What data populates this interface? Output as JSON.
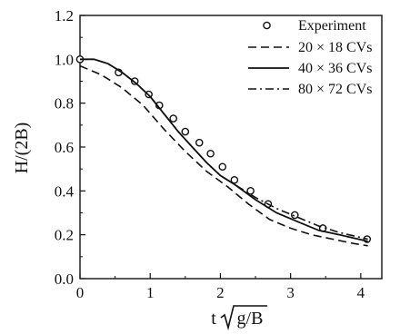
{
  "chart_data": {
    "type": "line",
    "xlabel": "t",
    "xlabel_sqrt": "g/B",
    "ylabel": "H/(2B)",
    "xlim": [
      0,
      4.3
    ],
    "ylim": [
      0,
      1.2
    ],
    "x_ticks": [
      0,
      1,
      2,
      3,
      4
    ],
    "y_ticks": [
      0.0,
      0.2,
      0.4,
      0.6,
      0.8,
      1.0,
      1.2
    ],
    "x_tick_labels": [
      "0",
      "1",
      "2",
      "3",
      "4"
    ],
    "y_tick_labels": [
      "0.0",
      "0.2",
      "0.4",
      "0.6",
      "0.8",
      "1.0",
      "1.2"
    ],
    "grid": false,
    "legend_position": "top-right",
    "series": [
      {
        "name": "Experiment",
        "style": "circle-markers",
        "color": "#111111",
        "x": [
          0.0,
          0.55,
          0.78,
          0.98,
          1.13,
          1.33,
          1.5,
          1.7,
          1.86,
          2.03,
          2.2,
          2.43,
          2.68,
          3.06,
          3.46,
          4.09
        ],
        "y": [
          1.0,
          0.94,
          0.9,
          0.84,
          0.79,
          0.73,
          0.67,
          0.62,
          0.57,
          0.51,
          0.45,
          0.4,
          0.34,
          0.29,
          0.23,
          0.18
        ]
      },
      {
        "name": "20 × 18 CVs",
        "style": "dashed",
        "color": "#111111",
        "x": [
          0.0,
          0.3,
          0.6,
          0.9,
          1.2,
          1.5,
          1.8,
          2.1,
          2.4,
          2.7,
          3.0,
          3.3,
          3.6,
          3.9,
          4.1
        ],
        "y": [
          0.97,
          0.93,
          0.87,
          0.79,
          0.68,
          0.58,
          0.49,
          0.42,
          0.34,
          0.27,
          0.23,
          0.2,
          0.18,
          0.16,
          0.15
        ]
      },
      {
        "name": "40 × 36 CVs",
        "style": "solid",
        "color": "#111111",
        "x": [
          0.0,
          0.2,
          0.4,
          0.6,
          0.8,
          1.0,
          1.2,
          1.4,
          1.6,
          1.8,
          2.0,
          2.2,
          2.5,
          2.8,
          3.1,
          3.4,
          3.7,
          4.1
        ],
        "y": [
          1.0,
          1.0,
          0.98,
          0.94,
          0.89,
          0.83,
          0.75,
          0.67,
          0.6,
          0.53,
          0.47,
          0.43,
          0.36,
          0.3,
          0.26,
          0.22,
          0.2,
          0.17
        ]
      },
      {
        "name": "80 × 72 CVs",
        "style": "dash-dot",
        "color": "#111111",
        "x": [
          0.0,
          0.2,
          0.4,
          0.6,
          0.8,
          1.0,
          1.2,
          1.4,
          1.6,
          1.8,
          2.0,
          2.2,
          2.5,
          2.8,
          3.1,
          3.4,
          3.7,
          4.1
        ],
        "y": [
          1.0,
          1.0,
          0.98,
          0.94,
          0.89,
          0.83,
          0.75,
          0.67,
          0.6,
          0.53,
          0.47,
          0.43,
          0.37,
          0.32,
          0.28,
          0.24,
          0.21,
          0.18
        ]
      }
    ]
  }
}
